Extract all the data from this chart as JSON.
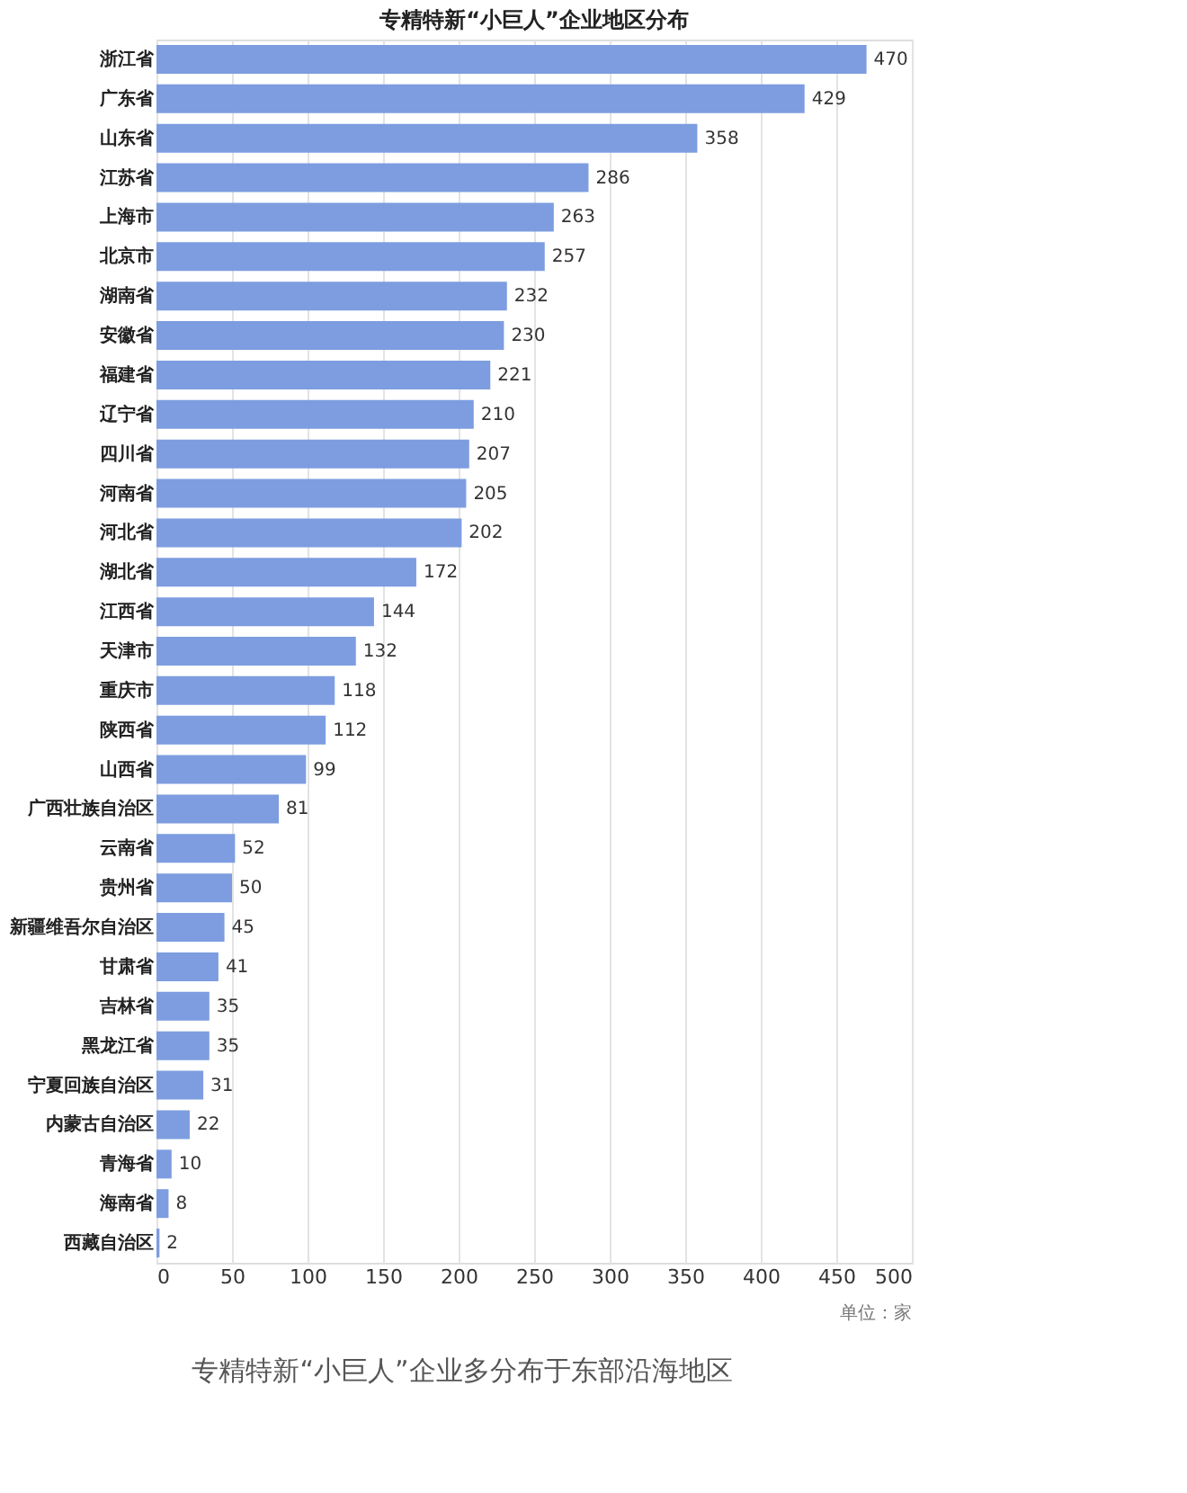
{
  "chart_data": {
    "type": "bar",
    "orientation": "horizontal",
    "title": "专精特新“小巨人”企业地区分布",
    "categories": [
      "浙江省",
      "广东省",
      "山东省",
      "江苏省",
      "上海市",
      "北京市",
      "湖南省",
      "安徽省",
      "福建省",
      "辽宁省",
      "四川省",
      "河南省",
      "河北省",
      "湖北省",
      "江西省",
      "天津市",
      "重庆市",
      "陕西省",
      "山西省",
      "广西壮族自治区",
      "云南省",
      "贵州省",
      "新疆维吾尔自治区",
      "甘肃省",
      "吉林省",
      "黑龙江省",
      "宁夏回族自治区",
      "内蒙古自治区",
      "青海省",
      "海南省",
      "西藏自治区"
    ],
    "values": [
      470,
      429,
      358,
      286,
      263,
      257,
      232,
      230,
      221,
      210,
      207,
      205,
      202,
      172,
      144,
      132,
      118,
      112,
      99,
      81,
      52,
      50,
      45,
      41,
      35,
      35,
      31,
      22,
      10,
      8,
      2
    ],
    "color": "#7d9de0",
    "xlim": [
      0,
      500
    ],
    "xticks": [
      0,
      50,
      100,
      150,
      200,
      250,
      300,
      350,
      400,
      450,
      500
    ],
    "grid": "x",
    "data_labels": true,
    "annotations": [
      "单位：家",
      "专精特新“小巨人”企业多分布于东部沿海地区"
    ]
  }
}
